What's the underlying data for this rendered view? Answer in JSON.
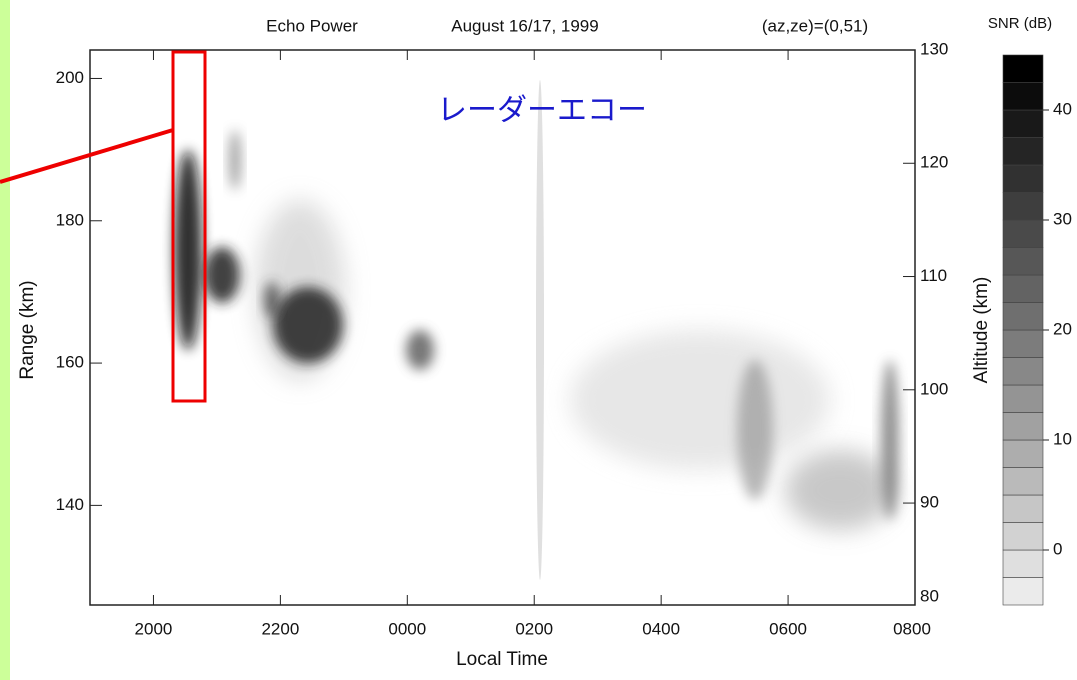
{
  "chart_data": {
    "type": "range-time-intensity",
    "title": "Echo Power",
    "subtitle": "August 16/17, 1999",
    "beam": "(az,ze)=(0,51)",
    "annotation": "レーダーエコー",
    "xlabel": "Local Time",
    "ylabel": "Range (km)",
    "y2label": "Altitude (km)",
    "xlim": [
      19,
      32
    ],
    "xticks": [
      {
        "value": 20,
        "label": "2000"
      },
      {
        "value": 22,
        "label": "2200"
      },
      {
        "value": 24,
        "label": "0000"
      },
      {
        "value": 26,
        "label": "0200"
      },
      {
        "value": 28,
        "label": "0400"
      },
      {
        "value": 30,
        "label": "0600"
      },
      {
        "value": 32,
        "label": "0800"
      }
    ],
    "ylim": [
      126,
      204
    ],
    "yticks": [
      140,
      160,
      180,
      200
    ],
    "y2lim": [
      81,
      130
    ],
    "y2ticks": [
      80,
      90,
      100,
      110,
      120,
      130
    ],
    "colorbar": {
      "label": "SNR (dB)",
      "lim": [
        -5,
        45
      ],
      "ticks": [
        0,
        10,
        20,
        30,
        40
      ]
    }
  }
}
